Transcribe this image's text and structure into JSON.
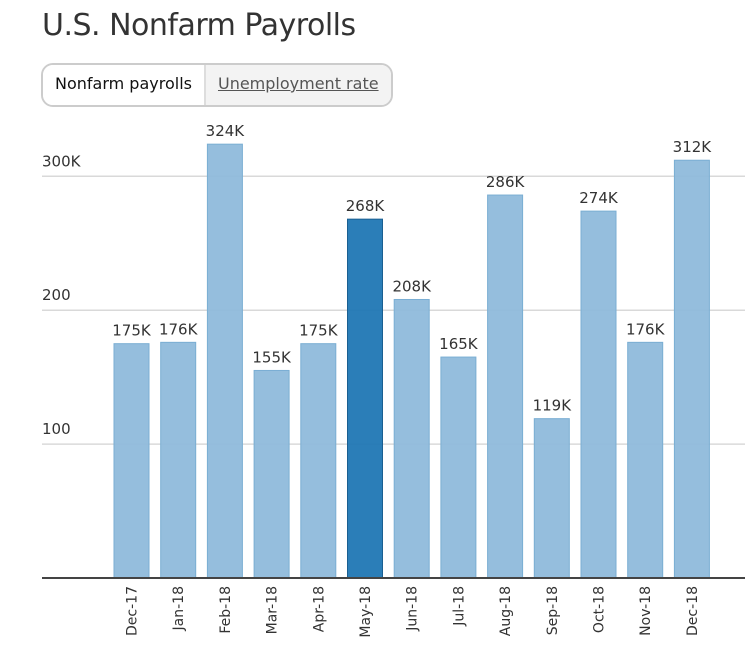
{
  "header": {
    "title": "U.S. Nonfarm Payrolls"
  },
  "toggle": {
    "options": [
      "Nonfarm payrolls",
      "Unemployment rate"
    ],
    "selected": "Nonfarm payrolls"
  },
  "chart_data": {
    "type": "bar",
    "title": "U.S. Nonfarm Payrolls",
    "unit": "thousands",
    "categories": [
      "Dec-17",
      "Jan-18",
      "Feb-18",
      "Mar-18",
      "Apr-18",
      "May-18",
      "Jun-18",
      "Jul-18",
      "Aug-18",
      "Sep-18",
      "Oct-18",
      "Nov-18",
      "Dec-18"
    ],
    "values": [
      175,
      176,
      324,
      155,
      175,
      268,
      208,
      165,
      286,
      119,
      274,
      176,
      312
    ],
    "labels": [
      "175K",
      "176K",
      "324K",
      "155K",
      "175K",
      "268K",
      "208K",
      "165K",
      "286K",
      "119K",
      "274K",
      "176K",
      "312K"
    ],
    "highlight": "May-18",
    "yticks": [
      100,
      200,
      300
    ],
    "ytick_labels": [
      "100",
      "200",
      "300K"
    ],
    "ylim": [
      0,
      330
    ],
    "grid": true,
    "colors": {
      "bar": "#8fbbdb",
      "highlight": "#2077b4",
      "grid": "#d9d9d9",
      "axis": "#444444"
    }
  }
}
